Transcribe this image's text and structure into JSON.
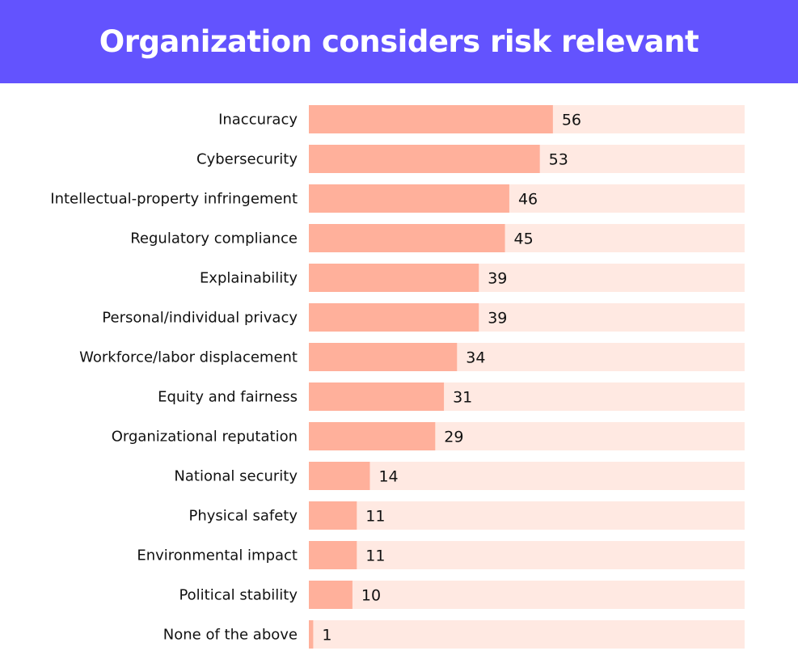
{
  "colors": {
    "banner": "#6353fe",
    "bar_fill": "#ffb09b",
    "bar_track": "#ffe9e2",
    "text": "#111111"
  },
  "chart_data": {
    "type": "bar",
    "orientation": "horizontal",
    "title": "Organization considers risk relevant",
    "categories": [
      "Inaccuracy",
      "Cybersecurity",
      "Intellectual-property infringement",
      "Regulatory compliance",
      "Explainability",
      "Personal/individual privacy",
      "Workforce/labor displacement",
      "Equity and fairness",
      "Organizational reputation",
      "National security",
      "Physical safety",
      "Environmental impact",
      "Political stability",
      "None of the above"
    ],
    "values": [
      56,
      53,
      46,
      45,
      39,
      39,
      34,
      31,
      29,
      14,
      11,
      11,
      10,
      1
    ],
    "xlim": [
      0,
      100
    ],
    "grid": false,
    "legend": "none",
    "data_labels": true
  }
}
